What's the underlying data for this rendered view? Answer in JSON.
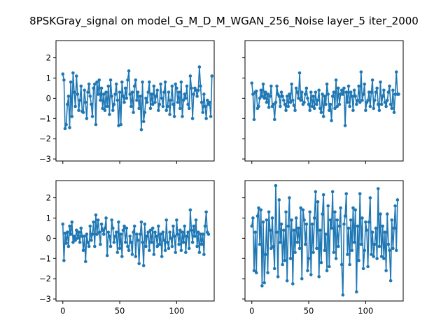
{
  "figure": {
    "title": "8PSKGray_signal on model_G_M_D_M_WGAN_256_Noise layer_5 iter_2000"
  },
  "colors": {
    "series": "#1f77b4",
    "axes": "#000000",
    "background": "#ffffff"
  },
  "chart_data": [
    {
      "type": "line",
      "panel": "top-left",
      "marker": "circle",
      "xlim": [
        -6,
        133
      ],
      "ylim": [
        -3.1,
        2.85
      ],
      "xticks": [
        0,
        50,
        100
      ],
      "xticklabels_visible": false,
      "yticks": [
        -3,
        -2,
        -1,
        0,
        1,
        2
      ],
      "yticklabels_visible": true,
      "grid": false,
      "series": [
        {
          "values": [
            1.2,
            0.9,
            -1.5,
            -1.3,
            -0.3,
            0.1,
            -1.45,
            0.8,
            -0.9,
            1.25,
            0.3,
            -0.4,
            1.1,
            0.2,
            -0.6,
            -0.1,
            0.6,
            -0.65,
            -0.7,
            0.4,
            -0.2,
            -1.0,
            0.3,
            0.7,
            0.1,
            -0.3,
            -0.9,
            0.5,
            0.7,
            -1.3,
            0.8,
            0.2,
            0.9,
            -0.1,
            0.5,
            -0.5,
            0.2,
            -0.6,
            0.3,
            -0.4,
            0.6,
            -0.8,
            0.9,
            0.1,
            -0.6,
            -0.3,
            0.2,
            0.7,
            -0.1,
            -1.35,
            0.3,
            -1.3,
            0.8,
            0.1,
            -0.2,
            0.5,
            0.0,
            0.9,
            1.35,
            0.2,
            -0.4,
            0.3,
            -0.7,
            0.6,
            0.9,
            -0.1,
            0.3,
            -0.5,
            0.1,
            -1.55,
            0.8,
            -1.15,
            -0.7,
            0.0,
            -0.2,
            0.3,
            0.8,
            -0.5,
            0.2,
            -0.3,
            0.6,
            -0.2,
            0.1,
            0.4,
            -0.6,
            -0.3,
            0.7,
            0.0,
            -0.4,
            0.3,
            0.8,
            -0.6,
            -0.4,
            0.3,
            -0.8,
            -0.1,
            0.6,
            -0.3,
            -0.9,
            0.7,
            0.5,
            -0.2,
            0.3,
            -0.5,
            0.8,
            -0.9,
            -0.1,
            0.2,
            0.0,
            0.6,
            -0.3,
            -0.5,
            1.1,
            0.5,
            -1.0,
            0.2,
            0.5,
            0.4,
            0.1,
            0.4,
            1.55,
            0.6,
            -0.2,
            -0.7,
            0.2,
            -0.4,
            -1.0,
            -0.1,
            -0.3,
            -0.2,
            -0.9,
            1.1
          ]
        }
      ]
    },
    {
      "type": "line",
      "panel": "top-right",
      "marker": "circle",
      "xlim": [
        -6,
        133
      ],
      "ylim": [
        -3.1,
        2.85
      ],
      "xticks": [
        0,
        50,
        100
      ],
      "xticklabels_visible": false,
      "yticks": [
        -3,
        -2,
        -1,
        0,
        1,
        2
      ],
      "yticklabels_visible": false,
      "grid": false,
      "series": [
        {
          "values": [
            0.75,
            0.2,
            -1.05,
            0.3,
            0.35,
            -0.5,
            -0.4,
            0.0,
            0.4,
            0.1,
            0.7,
            0.0,
            0.3,
            -0.2,
            0.2,
            -0.45,
            0.1,
            0.6,
            -0.4,
            -0.3,
            -1.05,
            -0.2,
            0.6,
            0.2,
            0.1,
            -0.4,
            0.3,
            0.1,
            -0.1,
            -0.3,
            -0.6,
            0.1,
            -0.4,
            0.2,
            -0.2,
            0.7,
            -0.1,
            -0.35,
            -0.6,
            0.5,
            0.3,
            0.0,
            1.25,
            -0.1,
            0.3,
            -0.3,
            -0.2,
            0.2,
            0.5,
            0.0,
            -0.3,
            -0.6,
            0.3,
            -0.4,
            0.1,
            -0.5,
            0.3,
            -0.3,
            -0.1,
            0.4,
            -0.5,
            -0.7,
            0.2,
            -0.9,
            0.1,
            -0.3,
            0.7,
            0.2,
            -0.6,
            -0.3,
            -1.1,
            0.1,
            0.3,
            -0.5,
            0.9,
            -0.4,
            0.5,
            -0.3,
            0.2,
            0.4,
            0.2,
            0.5,
            -1.35,
            0.3,
            -0.2,
            0.6,
            -0.4,
            0.3,
            0.1,
            -0.6,
            0.4,
            0.1,
            -0.3,
            -0.1,
            0.6,
            -0.2,
            1.3,
            -0.1,
            0.2,
            0.7,
            -0.6,
            -0.2,
            -0.1,
            0.3,
            -0.4,
            0.3,
            0.9,
            -0.5,
            -0.1,
            0.3,
            0.5,
            -0.3,
            -0.6,
            0.8,
            -0.3,
            0.1,
            0.4,
            -0.2,
            -0.4,
            -0.1,
            0.3,
            0.6,
            -0.3,
            -0.5,
            0.4,
            -0.7,
            0.2,
            1.3,
            0.2,
            0.2
          ]
        }
      ]
    },
    {
      "type": "line",
      "panel": "bottom-left",
      "marker": "circle",
      "xlim": [
        -6,
        133
      ],
      "ylim": [
        -3.1,
        2.85
      ],
      "xticks": [
        0,
        50,
        100
      ],
      "xticklabels_visible": true,
      "yticks": [
        -3,
        -2,
        -1,
        0,
        1,
        2
      ],
      "yticklabels_visible": true,
      "grid": false,
      "series": [
        {
          "values": [
            0.7,
            -1.1,
            0.25,
            -0.25,
            0.3,
            -0.4,
            0.6,
            0.2,
            0.8,
            -0.2,
            0.1,
            -0.1,
            0.4,
            0.0,
            0.3,
            -0.2,
            0.5,
            0.1,
            -0.6,
            0.1,
            -1.15,
            0.2,
            -0.2,
            -0.4,
            0.6,
            -0.1,
            0.2,
            0.8,
            -0.4,
            1.15,
            0.2,
            0.9,
            0.3,
            -0.3,
            0.7,
            0.4,
            0.2,
            0.5,
            1.0,
            -0.85,
            0.3,
            0.1,
            -0.4,
            0.9,
            0.5,
            -0.2,
            0.1,
            0.3,
            -0.7,
            0.8,
            -0.5,
            0.2,
            -0.9,
            0.4,
            0.6,
            -0.2,
            0.5,
            -0.4,
            -0.6,
            0.1,
            -0.2,
            -0.8,
            0.3,
            0.6,
            -0.9,
            0.2,
            -0.1,
            -1.25,
            0.2,
            0.8,
            -0.2,
            -1.35,
            0.7,
            -0.4,
            0.1,
            0.3,
            -0.6,
            0.4,
            -0.2,
            0.5,
            -0.8,
            0.3,
            0.1,
            -0.4,
            0.6,
            -0.3,
            0.2,
            -0.9,
            0.3,
            -0.1,
            -0.6,
            0.9,
            -0.2,
            -0.5,
            0.3,
            0.0,
            -0.4,
            0.6,
            0.1,
            -0.7,
            0.9,
            0.2,
            -0.3,
            0.4,
            -0.6,
            0.3,
            -0.2,
            0.6,
            -0.7,
            0.1,
            0.3,
            -0.5,
            1.4,
            0.4,
            -0.2,
            0.6,
            0.1,
            0.9,
            -0.4,
            0.3,
            -0.7,
            0.2,
            -0.3,
            0.2,
            -0.8,
            0.6,
            1.3,
            0.3,
            0.2
          ]
        }
      ]
    },
    {
      "type": "line",
      "panel": "bottom-right",
      "marker": "circle",
      "xlim": [
        -6,
        133
      ],
      "ylim": [
        -3.1,
        2.85
      ],
      "xticks": [
        0,
        50,
        100
      ],
      "xticklabels_visible": true,
      "yticks": [
        -3,
        -2,
        -1,
        0,
        1,
        2
      ],
      "yticklabels_visible": false,
      "grid": false,
      "series": [
        {
          "values": [
            0.6,
            1.0,
            -1.6,
            0.3,
            -1.7,
            1.1,
            1.5,
            -0.3,
            1.4,
            -2.35,
            0.8,
            -2.2,
            -0.8,
            0.9,
            -1.7,
            1.3,
            0.4,
            -0.5,
            1.0,
            -0.4,
            -1.5,
            2.6,
            0.3,
            -1.9,
            1.9,
            -0.2,
            0.7,
            -1.3,
            0.4,
            -1.1,
            1.3,
            -2.1,
            0.6,
            2.0,
            -1.0,
            0.9,
            -2.25,
            0.4,
            -0.7,
            1.0,
            -0.2,
            0.5,
            -0.5,
            1.5,
            -2.0,
            1.4,
            0.9,
            -0.3,
            0.7,
            -1.6,
            -1.0,
            1.3,
            -1.8,
            0.7,
            -0.7,
            1.0,
            2.3,
            -0.5,
            1.8,
            -1.9,
            0.4,
            -1.2,
            1.2,
            2.15,
            -0.6,
            0.2,
            -1.6,
            1.6,
            -1.4,
            0.9,
            0.5,
            2.3,
            -0.7,
            1.3,
            -1.0,
            0.9,
            -0.4,
            0.6,
            1.5,
            -1.3,
            -2.8,
            0.7,
            1.1,
            2.2,
            -0.8,
            0.5,
            -1.3,
            0.9,
            -0.6,
            1.5,
            -0.2,
            1.4,
            -2.65,
            0.6,
            -1.1,
            2.2,
            -0.3,
            1.0,
            -1.5,
            -0.6,
            0.8,
            0.4,
            -1.4,
            0.8,
            2.0,
            -0.8,
            0.3,
            -0.9,
            -0.3,
            0.5,
            -1.0,
            2.45,
            -0.4,
            1.2,
            -0.9,
            0.6,
            -1.0,
            0.3,
            -1.6,
            1.2,
            -0.3,
            -0.6,
            -2.1,
            0.9,
            -0.5,
            0.5,
            1.6,
            -0.6,
            1.9
          ]
        }
      ]
    }
  ]
}
